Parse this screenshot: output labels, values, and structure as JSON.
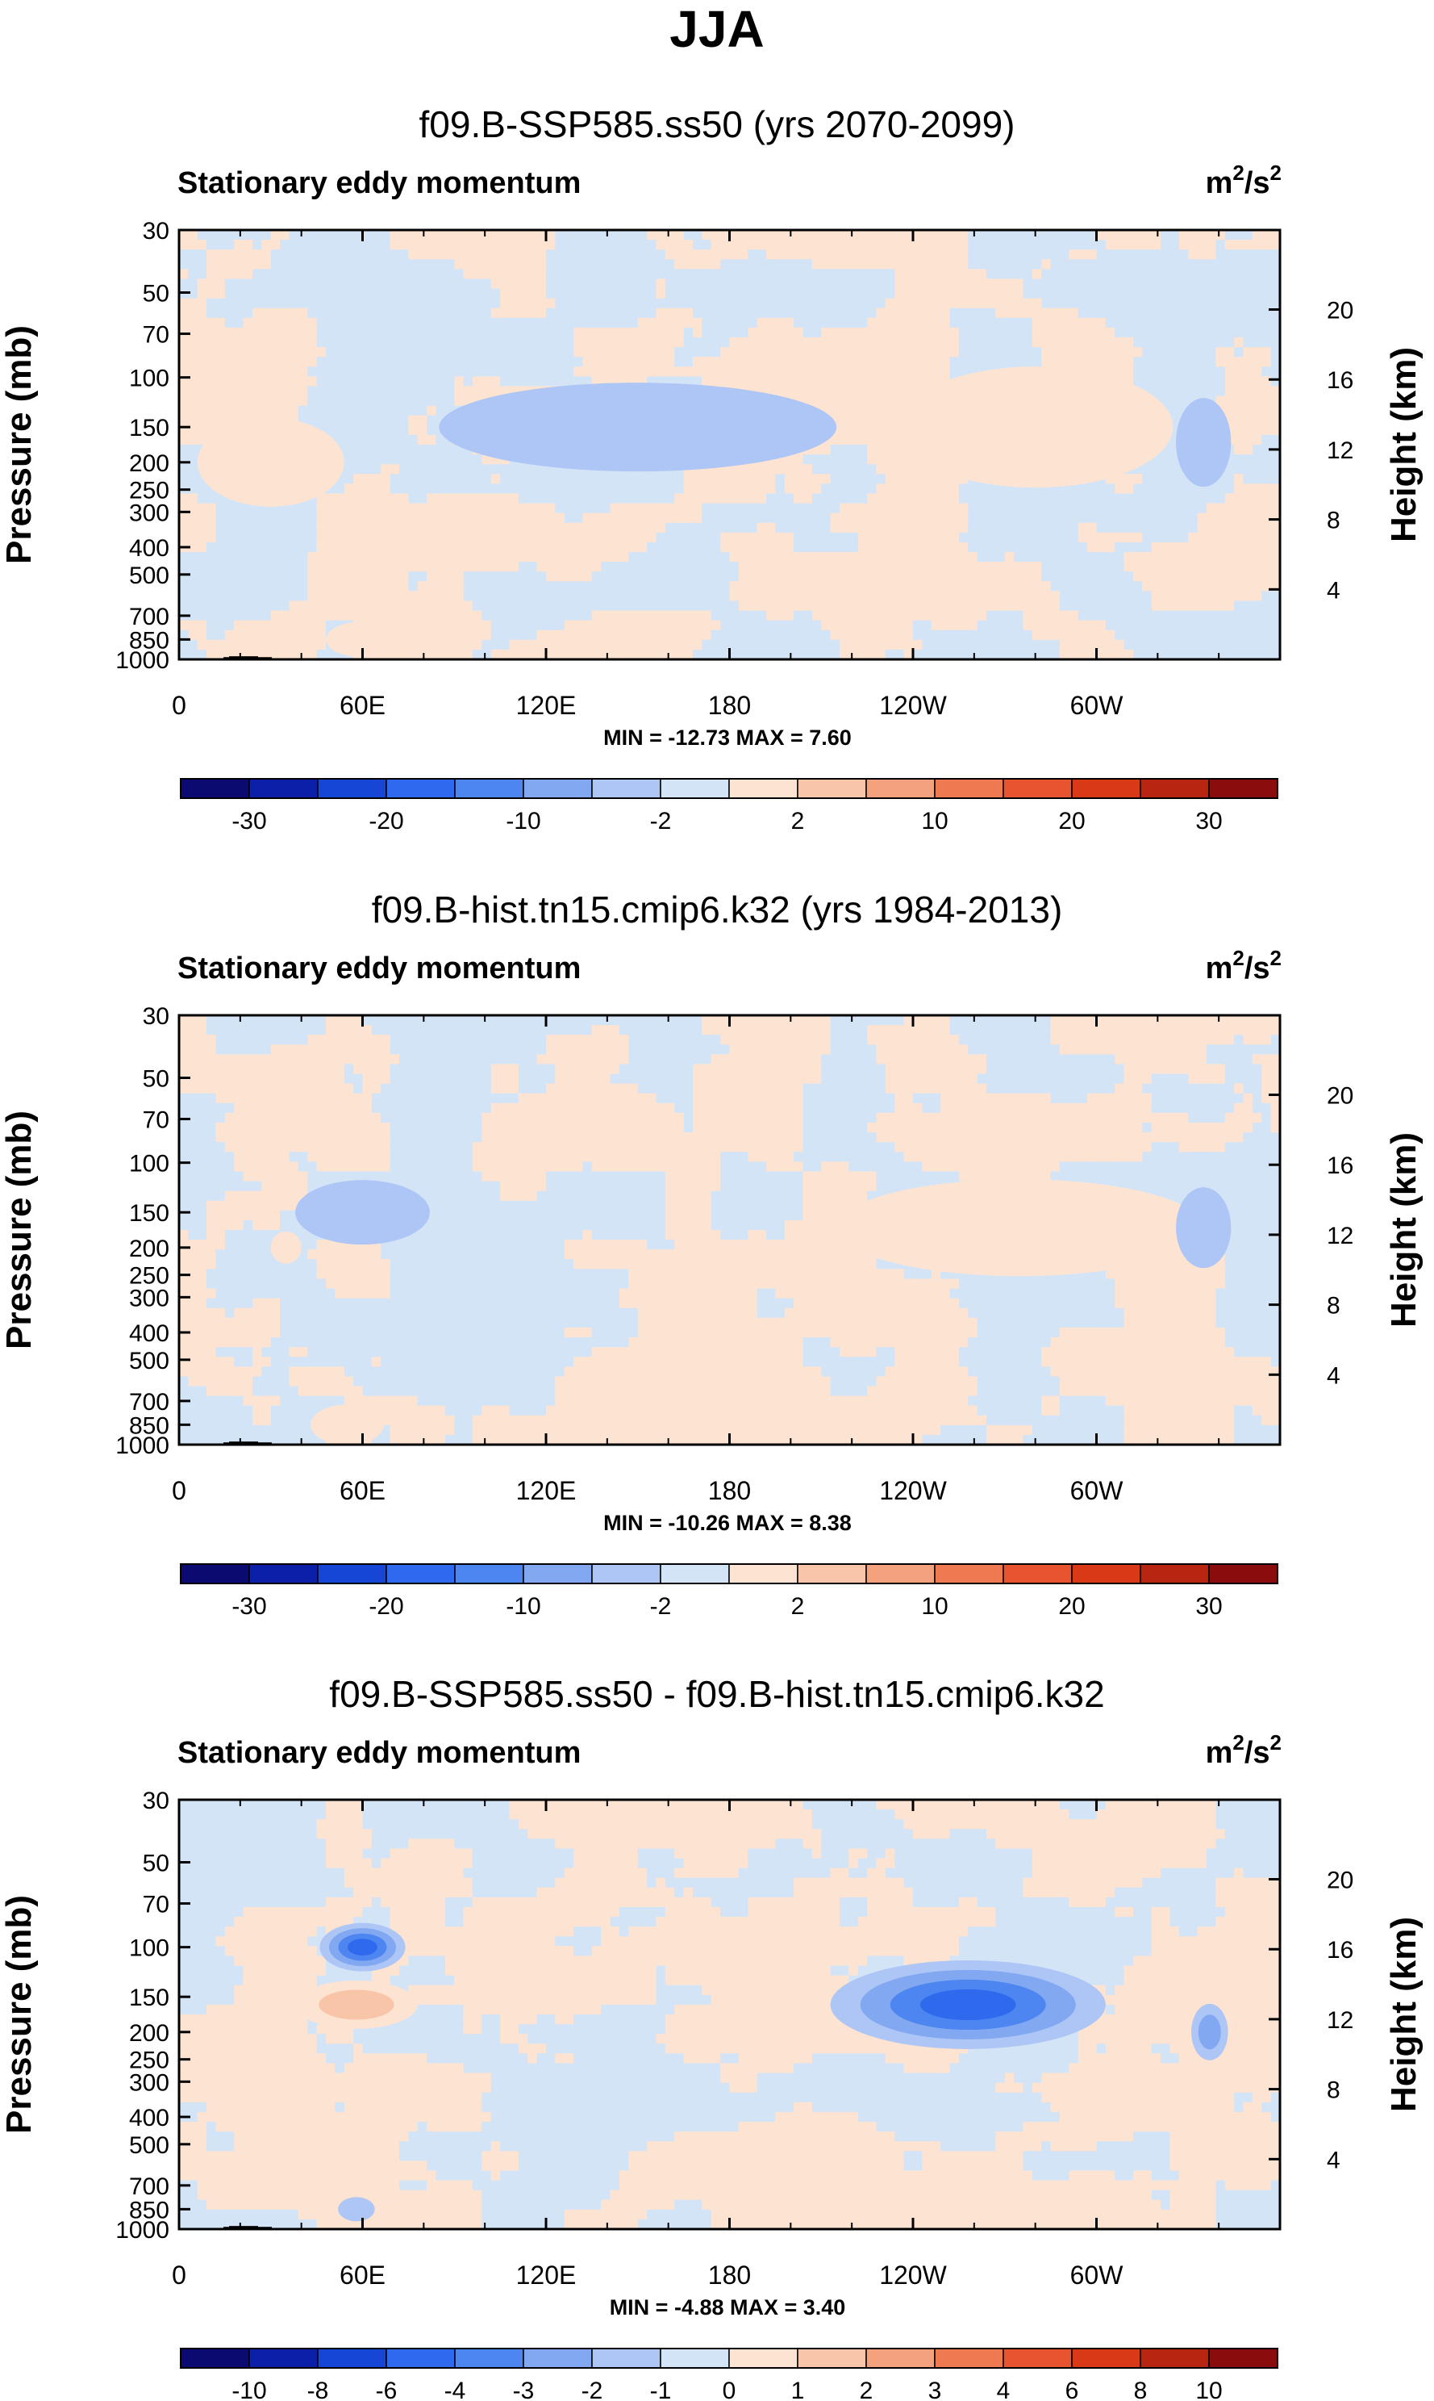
{
  "figure": {
    "title": "JJA",
    "variable": "Stationary eddy momentum",
    "units": "m²/s²",
    "units_base": "m",
    "units_sup1": "2",
    "units_mid": "/s",
    "units_sup2": "2",
    "ylabel_left": "Pressure (mb)",
    "ylabel_right": "Height (km)"
  },
  "chart_data": [
    {
      "type": "heatmap",
      "title": "f09.B-SSP585.ss50 (yrs 2070-2099)",
      "subtitle": "Stationary eddy momentum",
      "units": "m²/s²",
      "xlabel": "",
      "ylabel": "Pressure (mb)",
      "ylabel_right": "Height (km)",
      "x_ticks": [
        "0",
        "60E",
        "120E",
        "180",
        "120W",
        "60W"
      ],
      "y_ticks": [
        "30",
        "50",
        "70",
        "100",
        "150",
        "200",
        "250",
        "300",
        "400",
        "500",
        "700",
        "850",
        "1000"
      ],
      "y_right_ticks": [
        "20",
        "16",
        "12",
        "8",
        "4"
      ],
      "min_max_text": "MIN = -12.73   MAX =   7.60",
      "stats": {
        "min": -12.73,
        "max": 7.6
      },
      "colorbar_labels": [
        "-30",
        "-20",
        "-10",
        "-2",
        "2",
        "10",
        "20",
        "30"
      ],
      "colorbar_levels": [
        -35,
        -30,
        -25,
        -20,
        -15,
        -10,
        -5,
        -2,
        0,
        2,
        5,
        10,
        15,
        20,
        25,
        30,
        35
      ],
      "features": [
        {
          "lon": 150,
          "p": 150,
          "rx": 65,
          "ry": 55,
          "level": -1
        },
        {
          "lon": 60,
          "p": 850,
          "rx": 12,
          "ry": 22,
          "level": 1
        },
        {
          "lon": 83,
          "p": 980,
          "rx": 9,
          "ry": 12,
          "level": 1
        },
        {
          "lon": 280,
          "p": 150,
          "rx": 45,
          "ry": 75,
          "level": 1
        },
        {
          "lon": 335,
          "p": 170,
          "rx": 9,
          "ry": 55,
          "level": -1
        },
        {
          "lon": 30,
          "p": 200,
          "rx": 24,
          "ry": 55,
          "level": 1
        }
      ]
    },
    {
      "type": "heatmap",
      "title": "f09.B-hist.tn15.cmip6.k32 (yrs 1984-2013)",
      "subtitle": "Stationary eddy momentum",
      "units": "m²/s²",
      "xlabel": "",
      "ylabel": "Pressure (mb)",
      "ylabel_right": "Height (km)",
      "x_ticks": [
        "0",
        "60E",
        "120E",
        "180",
        "120W",
        "60W"
      ],
      "y_ticks": [
        "30",
        "50",
        "70",
        "100",
        "150",
        "200",
        "250",
        "300",
        "400",
        "500",
        "700",
        "850",
        "1000"
      ],
      "y_right_ticks": [
        "20",
        "16",
        "12",
        "8",
        "4"
      ],
      "min_max_text": "MIN = -10.26   MAX =   8.38",
      "stats": {
        "min": -10.26,
        "max": 8.38
      },
      "colorbar_labels": [
        "-30",
        "-20",
        "-10",
        "-2",
        "2",
        "10",
        "20",
        "30"
      ],
      "colorbar_levels": [
        -35,
        -30,
        -25,
        -20,
        -15,
        -10,
        -5,
        -2,
        0,
        2,
        5,
        10,
        15,
        20,
        25,
        30,
        35
      ],
      "features": [
        {
          "lon": 275,
          "p": 170,
          "rx": 60,
          "ry": 60,
          "level": 1
        },
        {
          "lon": 55,
          "p": 850,
          "rx": 12,
          "ry": 25,
          "level": 1
        },
        {
          "lon": 60,
          "p": 150,
          "rx": 22,
          "ry": 40,
          "level": -1
        },
        {
          "lon": 335,
          "p": 170,
          "rx": 9,
          "ry": 50,
          "level": -1
        },
        {
          "lon": 35,
          "p": 200,
          "rx": 5,
          "ry": 20,
          "level": 1
        }
      ]
    },
    {
      "type": "heatmap",
      "title": "f09.B-SSP585.ss50 - f09.B-hist.tn15.cmip6.k32",
      "subtitle": "Stationary eddy momentum",
      "units": "m²/s²",
      "xlabel": "",
      "ylabel": "Pressure (mb)",
      "ylabel_right": "Height (km)",
      "x_ticks": [
        "0",
        "60E",
        "120E",
        "180",
        "120W",
        "60W"
      ],
      "y_ticks": [
        "30",
        "50",
        "70",
        "100",
        "150",
        "200",
        "250",
        "300",
        "400",
        "500",
        "700",
        "850",
        "1000"
      ],
      "y_right_ticks": [
        "20",
        "16",
        "12",
        "8",
        "4"
      ],
      "min_max_text": "MIN =  -4.88   MAX =   3.40",
      "stats": {
        "min": -4.88,
        "max": 3.4
      },
      "colorbar_labels": [
        "-10",
        "-8",
        "-6",
        "-4",
        "-3",
        "-2",
        "-1",
        "0",
        "1",
        "2",
        "3",
        "4",
        "6",
        "8",
        "10"
      ],
      "colorbar_levels": [
        -12,
        -10,
        -8,
        -6,
        -4,
        -3,
        -2,
        -1,
        0,
        1,
        2,
        3,
        4,
        6,
        8,
        10,
        12
      ],
      "features": [
        {
          "lon": 60,
          "p": 100,
          "rx": 14,
          "ry": 30,
          "level": -4
        },
        {
          "lon": 58,
          "p": 160,
          "rx": 20,
          "ry": 30,
          "level": 2
        },
        {
          "lon": 258,
          "p": 160,
          "rx": 45,
          "ry": 55,
          "level": -4
        },
        {
          "lon": 98,
          "p": 95,
          "rx": 12,
          "ry": 15,
          "level": 1
        },
        {
          "lon": 10,
          "p": 210,
          "rx": 8,
          "ry": 30,
          "level": 1
        },
        {
          "lon": 337,
          "p": 200,
          "rx": 6,
          "ry": 35,
          "level": -2
        },
        {
          "lon": 75,
          "p": 975,
          "rx": 8,
          "ry": 15,
          "level": 1
        },
        {
          "lon": 58,
          "p": 850,
          "rx": 6,
          "ry": 15,
          "level": -1
        }
      ]
    }
  ],
  "colors": {
    "palette": [
      "#0a0a70",
      "#0c1fa8",
      "#1546d6",
      "#2f6aee",
      "#4d86f0",
      "#82a8f2",
      "#adc6f5",
      "#d4e4f7",
      "#fde4d2",
      "#f8c5a8",
      "#f4a27d",
      "#ef7a52",
      "#e8542f",
      "#d93917",
      "#b82511",
      "#8a0c0c"
    ],
    "frame": "#000000",
    "topography": "#000000"
  }
}
